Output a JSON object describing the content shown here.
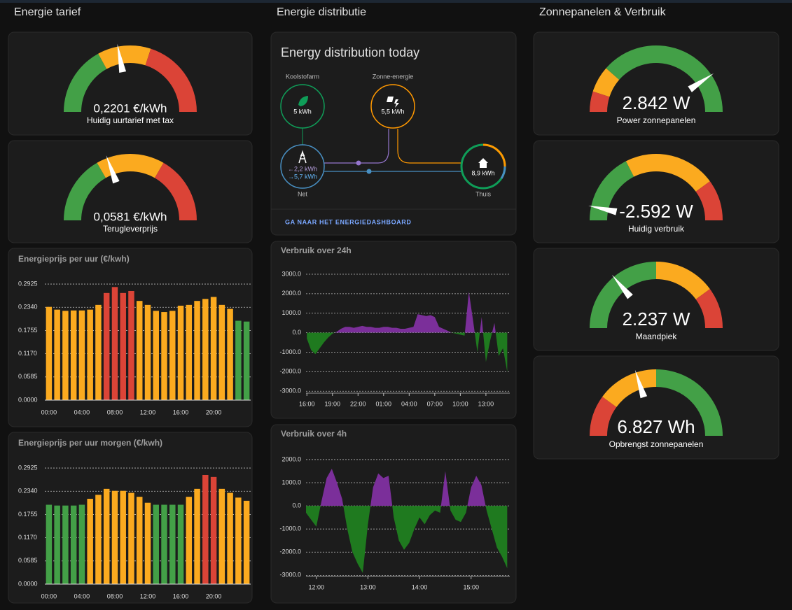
{
  "sections": [
    {
      "title": "Energie tarief"
    },
    {
      "title": "Energie distributie"
    },
    {
      "title": "Zonnepanelen & Verbruik"
    }
  ],
  "energy_distribution": {
    "title": "Energy distribution today",
    "low_carbon": {
      "label": "Koolstofarm",
      "value": "5 kWh"
    },
    "solar": {
      "label": "Zonne-energie",
      "value": "5,5 kWh"
    },
    "grid": {
      "label": "Net",
      "from_grid": "←2,2 kWh",
      "to_grid": "→5,7 kWh"
    },
    "home": {
      "label": "Thuis",
      "value": "8,9 kWh"
    },
    "link": "GA NAAR HET ENERGIEDASHBOARD"
  },
  "chart_data": [
    {
      "type": "gauge",
      "label": "Huidig uurtarief met tax",
      "value": 0.2201,
      "value_label": "0,2201 €/kWh",
      "min": 0,
      "max": 0.5,
      "segments": [
        {
          "to": 0.17,
          "color": "#43a047"
        },
        {
          "to": 0.3,
          "color": "#fbaa1f"
        },
        {
          "to": 0.5,
          "color": "#db4437"
        }
      ]
    },
    {
      "type": "gauge",
      "label": "Terugleverprijs",
      "value": 0.0581,
      "value_label": "0,0581 €/kWh",
      "min": 0,
      "max": 0.15,
      "segments": [
        {
          "to": 0.05,
          "color": "#43a047"
        },
        {
          "to": 0.1,
          "color": "#fbaa1f"
        },
        {
          "to": 0.15,
          "color": "#db4437"
        }
      ]
    },
    {
      "type": "gauge",
      "label": "Power zonnepanelen",
      "value": 2.842,
      "value_label": "2.842 W",
      "min": 0,
      "max": 3.5,
      "segments": [
        {
          "to": 0.35,
          "color": "#db4437"
        },
        {
          "to": 0.8,
          "color": "#fbaa1f"
        },
        {
          "to": 3.5,
          "color": "#43a047"
        }
      ]
    },
    {
      "type": "gauge",
      "label": "Huidig verbruik",
      "value": -2.592,
      "value_label": "-2.592 W",
      "min": -3,
      "max": 3,
      "segments": [
        {
          "to": -0.9,
          "color": "#43a047"
        },
        {
          "to": 1.8,
          "color": "#fbaa1f"
        },
        {
          "to": 3,
          "color": "#db4437"
        }
      ]
    },
    {
      "type": "gauge",
      "label": "Maandpiek",
      "value": 2.237,
      "value_label": "2.237 W",
      "min": 0,
      "max": 8,
      "segments": [
        {
          "to": 4,
          "color": "#43a047"
        },
        {
          "to": 6.4,
          "color": "#fbaa1f"
        },
        {
          "to": 8,
          "color": "#db4437"
        }
      ]
    },
    {
      "type": "gauge",
      "label": "Opbrengst zonnepanelen",
      "value": 6.827,
      "value_label": "6.827 Wh",
      "min": 0,
      "max": 17,
      "segments": [
        {
          "to": 3.4,
          "color": "#db4437"
        },
        {
          "to": 8.5,
          "color": "#fbaa1f"
        },
        {
          "to": 17,
          "color": "#43a047"
        }
      ]
    },
    {
      "type": "bar",
      "title": "Energieprijs per uur (€/kwh)",
      "categories": [
        "00:00",
        null,
        null,
        null,
        "04:00",
        null,
        null,
        null,
        "08:00",
        null,
        null,
        null,
        "12:00",
        null,
        null,
        null,
        "16:00",
        null,
        null,
        null,
        "20:00",
        null,
        null,
        null,
        null
      ],
      "values": [
        0.235,
        0.228,
        0.225,
        0.226,
        0.226,
        0.228,
        0.24,
        0.27,
        0.285,
        0.27,
        0.275,
        0.25,
        0.24,
        0.225,
        0.222,
        0.225,
        0.238,
        0.24,
        0.25,
        0.255,
        0.26,
        0.24,
        0.23,
        0.2,
        0.198
      ],
      "colors": [
        "#fbaa1f",
        "#fbaa1f",
        "#fbaa1f",
        "#fbaa1f",
        "#fbaa1f",
        "#fbaa1f",
        "#fbaa1f",
        "#db4437",
        "#db4437",
        "#db4437",
        "#db4437",
        "#fbaa1f",
        "#fbaa1f",
        "#fbaa1f",
        "#fbaa1f",
        "#fbaa1f",
        "#fbaa1f",
        "#fbaa1f",
        "#fbaa1f",
        "#fbaa1f",
        "#fbaa1f",
        "#fbaa1f",
        "#fbaa1f",
        "#43a047",
        "#43a047"
      ],
      "ylim": [
        0,
        0.312
      ],
      "yticks": [
        {
          "value": 0,
          "label": "0.0000"
        },
        0.0585,
        {
          "value": 0.117,
          "label": "0.1170"
        },
        0.1755,
        {
          "value": 0.234,
          "label": "0.2340"
        },
        0.2925
      ],
      "grid": true
    },
    {
      "type": "bar",
      "title": "Energieprijs per uur morgen (€/kwh)",
      "categories": [
        "00:00",
        null,
        null,
        null,
        "04:00",
        null,
        null,
        null,
        "08:00",
        null,
        null,
        null,
        "12:00",
        null,
        null,
        null,
        "16:00",
        null,
        null,
        null,
        "20:00",
        null,
        null,
        null,
        null
      ],
      "values": [
        0.2,
        0.198,
        0.198,
        0.198,
        0.2,
        0.215,
        0.225,
        0.24,
        0.235,
        0.235,
        0.23,
        0.22,
        0.205,
        0.2,
        0.2,
        0.2,
        0.2,
        0.22,
        0.24,
        0.275,
        0.27,
        0.24,
        0.23,
        0.218,
        0.21
      ],
      "colors": [
        "#43a047",
        "#43a047",
        "#43a047",
        "#43a047",
        "#43a047",
        "#fbaa1f",
        "#fbaa1f",
        "#fbaa1f",
        "#fbaa1f",
        "#fbaa1f",
        "#fbaa1f",
        "#fbaa1f",
        "#fbaa1f",
        "#43a047",
        "#43a047",
        "#43a047",
        "#43a047",
        "#fbaa1f",
        "#fbaa1f",
        "#db4437",
        "#db4437",
        "#fbaa1f",
        "#fbaa1f",
        "#fbaa1f",
        "#fbaa1f"
      ],
      "ylim": [
        0,
        0.312
      ],
      "yticks": [
        {
          "value": 0,
          "label": "0.0000"
        },
        0.0585,
        {
          "value": 0.117,
          "label": "0.1170"
        },
        0.1755,
        {
          "value": 0.234,
          "label": "0.2340"
        },
        0.2925
      ],
      "grid": true
    },
    {
      "type": "area",
      "title": "Verbruik over 24h",
      "x": [
        0,
        0.5,
        1,
        1.5,
        2,
        2.5,
        3,
        3.5,
        4,
        4.5,
        5,
        5.5,
        6,
        6.5,
        7,
        7.5,
        8,
        8.5,
        9,
        9.5,
        10,
        10.5,
        11,
        11.5,
        12,
        12.5,
        13,
        13.5,
        14,
        14.5,
        15,
        15.5,
        16,
        16.5,
        17,
        17.5,
        18,
        18.5,
        19,
        19.5,
        20,
        20.5,
        21,
        21.5,
        22,
        22.5,
        23,
        23.5
      ],
      "values": [
        -300,
        -900,
        -1100,
        -800,
        -500,
        -250,
        -50,
        50,
        200,
        300,
        300,
        250,
        300,
        350,
        300,
        300,
        250,
        250,
        300,
        300,
        250,
        250,
        200,
        200,
        250,
        300,
        950,
        900,
        850,
        900,
        800,
        300,
        200,
        100,
        0,
        -50,
        -100,
        -150,
        2100,
        600,
        -1000,
        800,
        -1500,
        -400,
        500,
        -1200,
        -800,
        -2000
      ],
      "color_positive": "#7b2f9a",
      "color_negative": "#1f7a1f",
      "xlim": [
        -0.1,
        23.8
      ],
      "xticks": [
        {
          "value": 0,
          "label": "16:00"
        },
        {
          "value": 3,
          "label": "19:00"
        },
        {
          "value": 6,
          "label": "22:00"
        },
        {
          "value": 9,
          "label": "01:00"
        },
        {
          "value": 12,
          "label": "04:00"
        },
        {
          "value": 15,
          "label": "07:00"
        },
        {
          "value": 18,
          "label": "10:00"
        },
        {
          "value": 21,
          "label": "13:00"
        }
      ],
      "ylim": [
        -3100,
        3250
      ],
      "yticks": [
        {
          "value": 3000,
          "label": "3000.0"
        },
        {
          "value": 2000,
          "label": "2000.0"
        },
        {
          "value": 1000,
          "label": "1000.0"
        },
        {
          "value": 0,
          "label": "0.0"
        },
        {
          "value": -1000,
          "label": "-1000.0"
        },
        {
          "value": -2000,
          "label": "-2000.0"
        },
        {
          "value": -3000,
          "label": "-3000.0"
        }
      ],
      "grid": true
    },
    {
      "type": "area",
      "title": "Verbruik over 4h",
      "x": [
        11.8,
        11.9,
        12,
        12.1,
        12.2,
        12.3,
        12.4,
        12.5,
        12.6,
        12.7,
        12.8,
        12.9,
        13,
        13.1,
        13.2,
        13.3,
        13.4,
        13.5,
        13.6,
        13.7,
        13.8,
        13.9,
        14,
        14.1,
        14.2,
        14.3,
        14.4,
        14.5,
        14.6,
        14.7,
        14.8,
        14.9,
        15,
        15.1,
        15.2,
        15.3,
        15.4,
        15.5,
        15.6,
        15.7
      ],
      "values": [
        -300,
        -600,
        -900,
        200,
        1200,
        1600,
        1000,
        300,
        -1000,
        -2000,
        -2500,
        -2900,
        -800,
        800,
        1400,
        1200,
        1300,
        -500,
        -1500,
        -1900,
        -1600,
        -1000,
        -500,
        -800,
        -400,
        -200,
        -300,
        1500,
        -200,
        -600,
        -700,
        -300,
        800,
        1300,
        900,
        -200,
        -1000,
        -1800,
        -2200,
        -2700
      ],
      "color_positive": "#7b2f9a",
      "color_negative": "#1f7a1f",
      "xlim": [
        11.8,
        15.75
      ],
      "xticks": [
        {
          "value": 12,
          "label": "12:00"
        },
        {
          "value": 13,
          "label": "13:00"
        },
        {
          "value": 14,
          "label": "14:00"
        },
        {
          "value": 15,
          "label": "15:00"
        }
      ],
      "ylim": [
        -3050,
        2300
      ],
      "yticks": [
        {
          "value": 2000,
          "label": "2000.0"
        },
        {
          "value": 1000,
          "label": "1000.0"
        },
        {
          "value": 0,
          "label": "0.0"
        },
        {
          "value": -1000,
          "label": "-1000.0"
        },
        {
          "value": -2000,
          "label": "-2000.0"
        },
        {
          "value": -3000,
          "label": "-3000.0"
        }
      ],
      "grid": true
    }
  ]
}
